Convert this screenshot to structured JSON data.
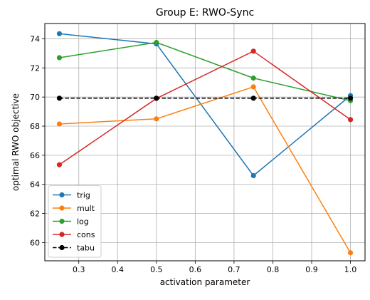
{
  "chart_data": {
    "type": "line",
    "title": "Group E: RWO-Sync",
    "xlabel": "activation parameter",
    "ylabel": "optimal RWO objective",
    "x": [
      0.25,
      0.5,
      0.75,
      1.0
    ],
    "xlim": [
      0.2125,
      1.0375
    ],
    "ylim": [
      58.75,
      75.05
    ],
    "xticks": [
      0.3,
      0.4,
      0.5,
      0.6,
      0.7,
      0.8,
      0.9,
      1.0
    ],
    "xtick_labels": [
      "0.3",
      "0.4",
      "0.5",
      "0.6",
      "0.7",
      "0.8",
      "0.9",
      "1.0"
    ],
    "yticks": [
      60,
      62,
      64,
      66,
      68,
      70,
      72,
      74
    ],
    "ytick_labels": [
      "60",
      "62",
      "64",
      "66",
      "68",
      "70",
      "72",
      "74"
    ],
    "grid": true,
    "legend_position": "lower-left",
    "series": [
      {
        "name": "trig",
        "color": "#1f77b4",
        "style": "solid",
        "values": [
          74.35,
          73.65,
          64.6,
          70.1
        ]
      },
      {
        "name": "mult",
        "color": "#ff7f0e",
        "style": "solid",
        "values": [
          68.15,
          68.5,
          70.7,
          59.3
        ]
      },
      {
        "name": "log",
        "color": "#2ca02c",
        "style": "solid",
        "values": [
          72.7,
          73.75,
          71.3,
          69.75
        ]
      },
      {
        "name": "cons",
        "color": "#d62728",
        "style": "solid",
        "values": [
          65.35,
          69.9,
          73.15,
          68.45
        ]
      },
      {
        "name": "tabu",
        "color": "#000000",
        "style": "dashed",
        "values": [
          69.92,
          69.92,
          69.92,
          69.92
        ]
      }
    ]
  }
}
